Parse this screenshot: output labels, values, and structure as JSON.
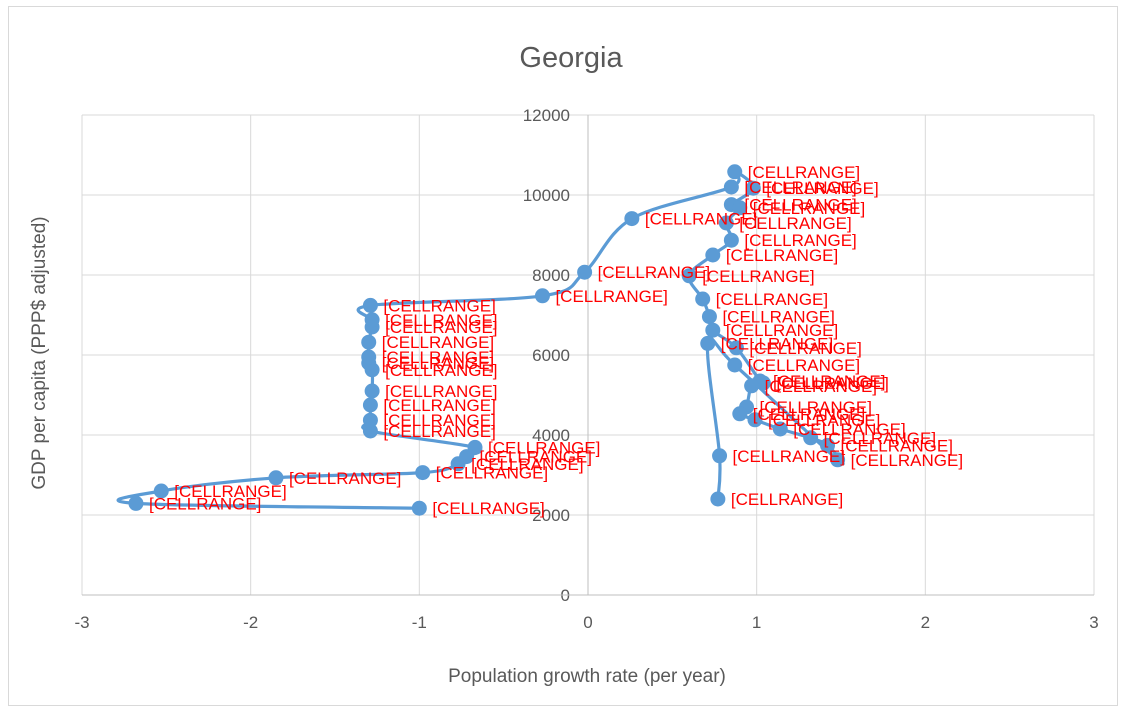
{
  "chart_data": {
    "type": "scatter",
    "title": "Georgia",
    "xlabel": "Population growth rate (per year)",
    "ylabel": "GDP per capita (PPP$ adjusted)",
    "xlim": [
      -3,
      3
    ],
    "ylim": [
      0,
      12000
    ],
    "x_ticks": [
      "-3",
      "-2",
      "-1",
      "0",
      "1",
      "2",
      "3"
    ],
    "y_ticks": [
      "0",
      "2000",
      "4000",
      "6000",
      "8000",
      "10000",
      "12000"
    ],
    "grid": true,
    "legend": "none",
    "series_color": "#5b9bd5",
    "label_color": "#ff0000",
    "data_label_text": "[CELLRANGE]",
    "series": [
      {
        "points": [
          {
            "x": -1.0,
            "y": 2170
          },
          {
            "x": -2.68,
            "y": 2290
          },
          {
            "x": -2.53,
            "y": 2600
          },
          {
            "x": -1.85,
            "y": 2930
          },
          {
            "x": -0.98,
            "y": 3060
          },
          {
            "x": -0.77,
            "y": 3280
          },
          {
            "x": -0.72,
            "y": 3460
          },
          {
            "x": -0.67,
            "y": 3690
          },
          {
            "x": -1.29,
            "y": 4100
          },
          {
            "x": -1.29,
            "y": 4370
          },
          {
            "x": -1.29,
            "y": 4750
          },
          {
            "x": -1.28,
            "y": 5100
          },
          {
            "x": -1.28,
            "y": 5630
          },
          {
            "x": -1.3,
            "y": 5800
          },
          {
            "x": -1.3,
            "y": 5950
          },
          {
            "x": -1.3,
            "y": 6320
          },
          {
            "x": -1.28,
            "y": 6700
          },
          {
            "x": -1.28,
            "y": 6880
          },
          {
            "x": -1.29,
            "y": 7240
          },
          {
            "x": -0.27,
            "y": 7480
          },
          {
            "x": -0.02,
            "y": 8070
          },
          {
            "x": 0.26,
            "y": 9410
          },
          {
            "x": 0.85,
            "y": 10200
          },
          {
            "x": 0.87,
            "y": 10580
          },
          {
            "x": 0.98,
            "y": 10170
          },
          {
            "x": 0.85,
            "y": 9760
          },
          {
            "x": 0.9,
            "y": 9680
          },
          {
            "x": 0.82,
            "y": 9300
          },
          {
            "x": 0.85,
            "y": 8870
          },
          {
            "x": 0.74,
            "y": 8500
          },
          {
            "x": 0.6,
            "y": 7980
          },
          {
            "x": 0.68,
            "y": 7400
          },
          {
            "x": 0.72,
            "y": 6960
          },
          {
            "x": 0.74,
            "y": 6620
          },
          {
            "x": 0.88,
            "y": 6180
          },
          {
            "x": 1.02,
            "y": 5350
          },
          {
            "x": 1.04,
            "y": 5300
          },
          {
            "x": 0.97,
            "y": 5230
          },
          {
            "x": 0.94,
            "y": 4700
          },
          {
            "x": 0.9,
            "y": 4530
          },
          {
            "x": 0.99,
            "y": 4380
          },
          {
            "x": 1.14,
            "y": 4150
          },
          {
            "x": 1.32,
            "y": 3930
          },
          {
            "x": 1.42,
            "y": 3740
          },
          {
            "x": 1.48,
            "y": 3380
          },
          {
            "x": 0.87,
            "y": 5750
          },
          {
            "x": 0.71,
            "y": 6290
          },
          {
            "x": 0.78,
            "y": 3480
          },
          {
            "x": 0.77,
            "y": 2400
          }
        ]
      }
    ]
  }
}
